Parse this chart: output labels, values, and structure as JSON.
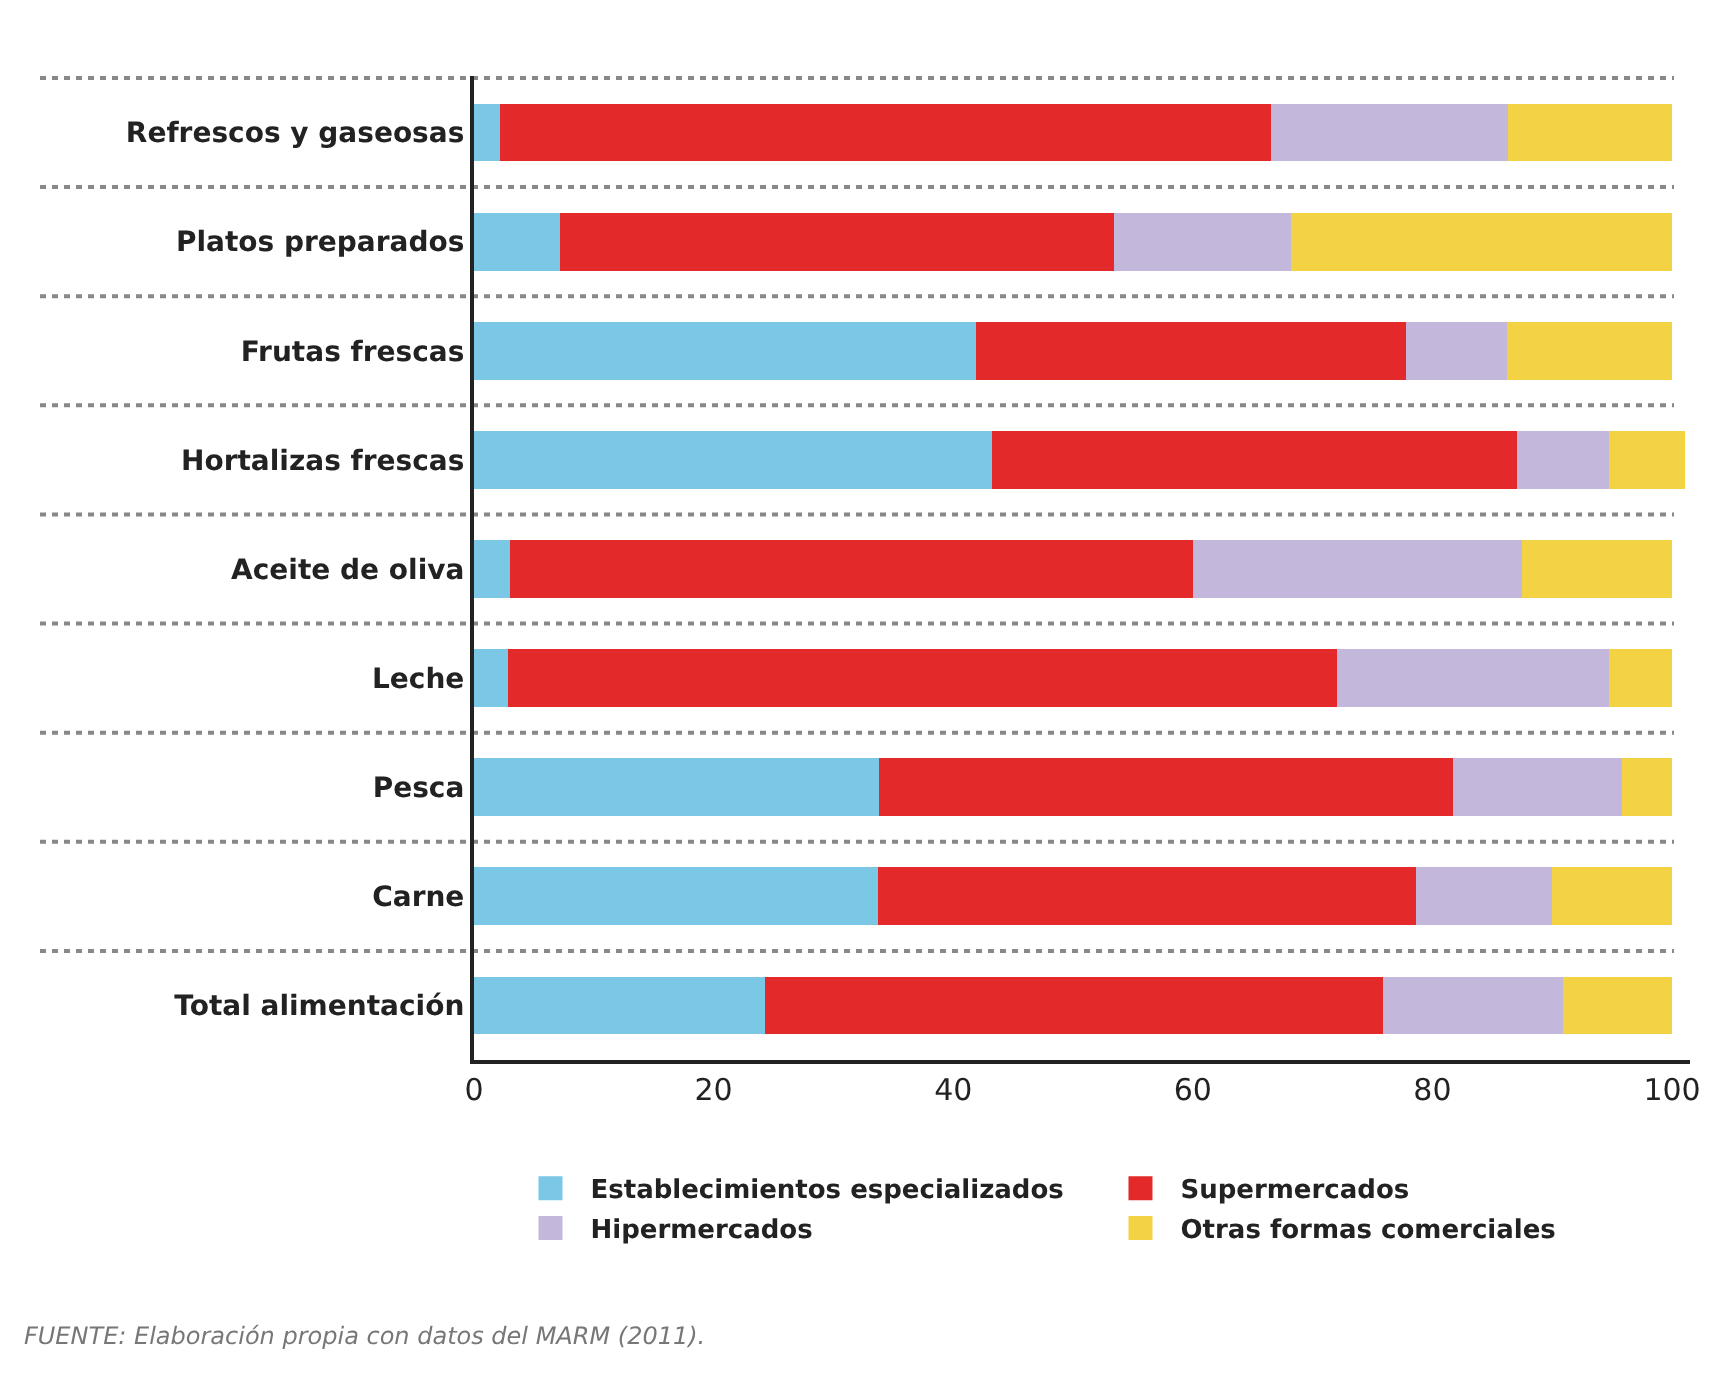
{
  "chart_data": {
    "type": "bar",
    "orientation": "horizontal",
    "stacked": true,
    "categories": [
      "Refrescos y gaseosas",
      "Platos preparados",
      "Frutas frescas",
      "Hortalizas frescas",
      "Aceite de oliva",
      "Leche",
      "Pesca",
      "Carne",
      "Total alimentación"
    ],
    "series": [
      {
        "name": "Establecimientos especializados",
        "color": "#7ac7e6",
        "values": [
          2.2,
          7.2,
          41.9,
          43.2,
          3.0,
          2.8,
          33.8,
          33.7,
          24.3
        ]
      },
      {
        "name": "Supermercados",
        "color": "#e3292a",
        "values": [
          64.3,
          46.2,
          35.9,
          43.9,
          57.0,
          69.2,
          47.9,
          44.9,
          51.6
        ]
      },
      {
        "name": "Hipermercados",
        "color": "#c3b8dc",
        "values": [
          19.8,
          14.8,
          8.4,
          7.6,
          27.5,
          22.7,
          14.1,
          11.4,
          15.0
        ]
      },
      {
        "name": "Otras formas comerciales",
        "color": "#f3d244",
        "values": [
          13.7,
          31.8,
          13.8,
          6.4,
          12.5,
          5.3,
          4.2,
          10.0,
          9.1
        ]
      }
    ],
    "xlim": [
      0,
      101.5
    ],
    "xticks": [
      0,
      20,
      40,
      60,
      80,
      100
    ],
    "grid": "y",
    "legend": "bottom",
    "annotations": [
      "FUENTE: Elaboración propia con datos del MARM (2011)."
    ]
  }
}
